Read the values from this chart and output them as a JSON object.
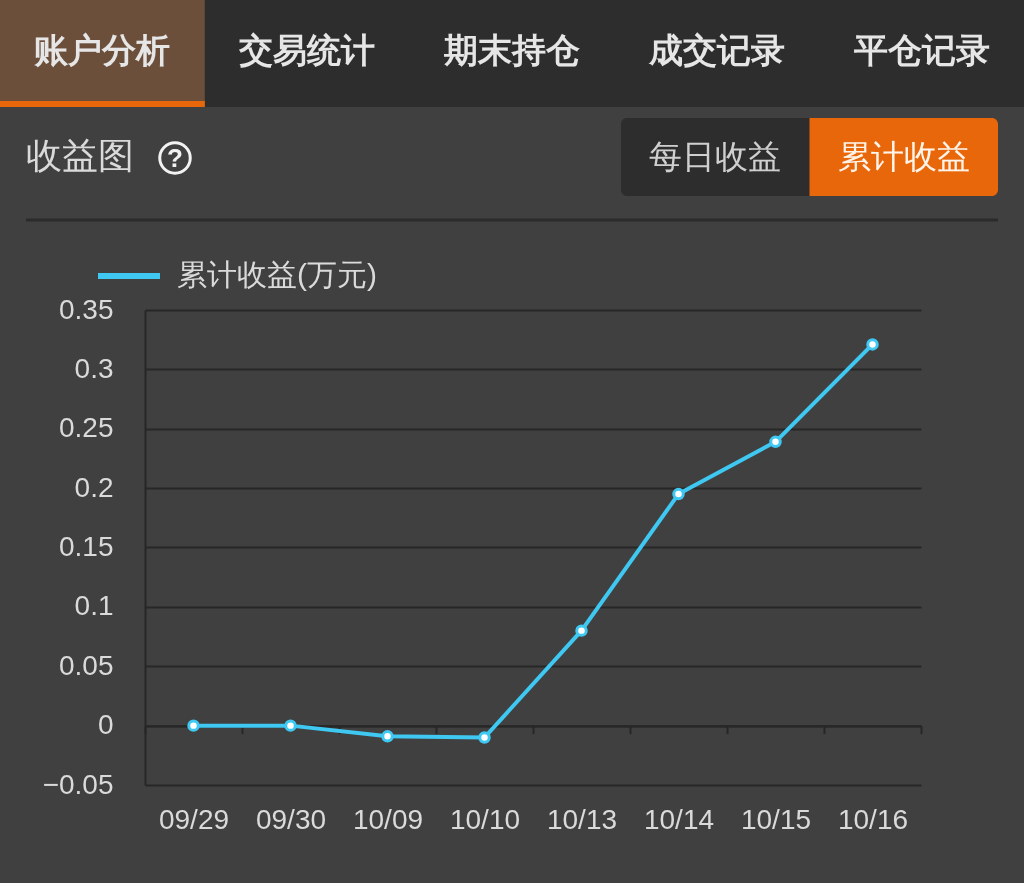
{
  "chart_data": [
    {
      "type": "other",
      "annotations": [
        "账户分析",
        "交易统计",
        "期末持仓",
        "成交记录",
        "平仓记录"
      ]
    },
    {
      "type": "line",
      "title": "收益图",
      "annotations": [
        "?",
        "每日收益",
        "累计收益"
      ],
      "categories": [
        "09/29",
        "09/30",
        "10/09",
        "10/10",
        "10/13",
        "10/14",
        "10/15",
        "10/16"
      ],
      "series": [
        {
          "name": "累计收益(万元)",
          "color": "#3ec8f2",
          "values": [
            0,
            0,
            -0.009,
            -0.01,
            0.08,
            0.195,
            0.239,
            0.321
          ]
        }
      ],
      "ylim": [
        -0.05,
        0.35
      ],
      "yticks": [
        -0.05,
        0,
        0.05,
        0.1,
        0.15,
        0.2,
        0.25,
        0.3,
        0.35
      ],
      "grid": "y",
      "legend": "top left",
      "marker": "circle",
      "line_style": "solid"
    }
  ]
}
